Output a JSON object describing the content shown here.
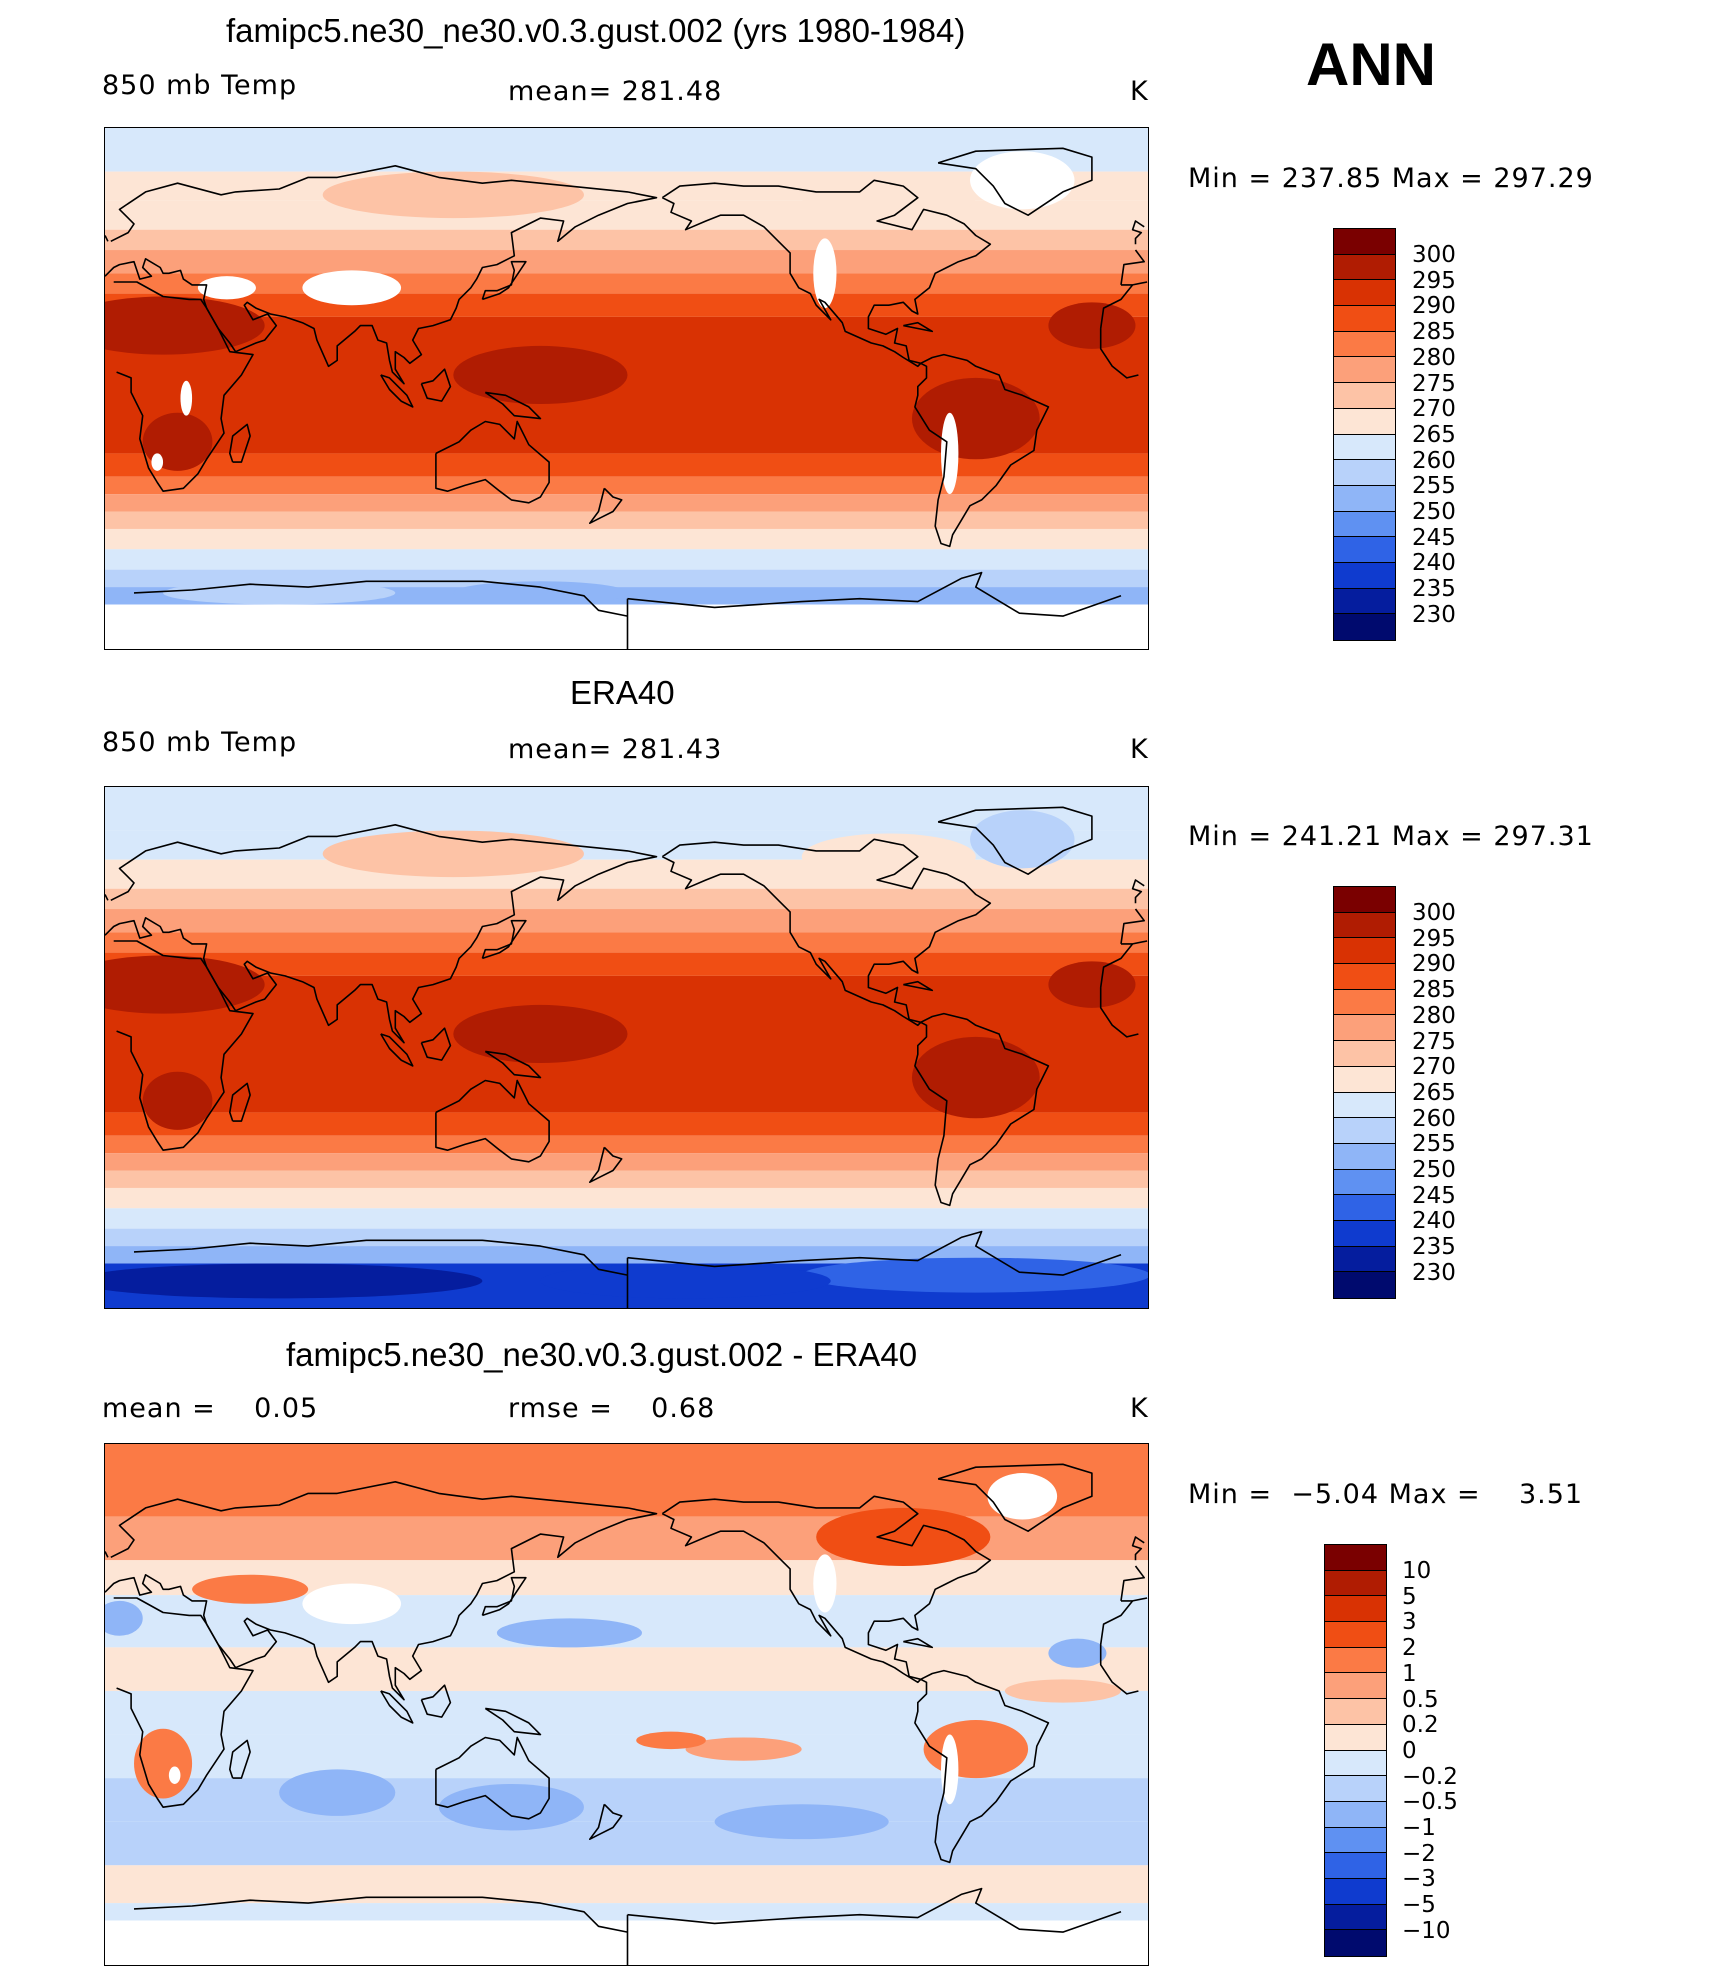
{
  "season": "ANN",
  "panels": [
    {
      "id": "model",
      "title": "famipc5.ne30_ne30.v0.3.gust.002 (yrs 1980-1984)",
      "left_label": "850 mb Temp",
      "center_label": "mean= 281.48",
      "units": "K",
      "min_max": "Min = 237.85 Max = 297.29",
      "colorbar_labels": [
        "300",
        "295",
        "290",
        "285",
        "280",
        "275",
        "270",
        "265",
        "260",
        "255",
        "250",
        "245",
        "240",
        "235",
        "230"
      ],
      "field": "model"
    },
    {
      "id": "obs",
      "title": "ERA40",
      "left_label": "850 mb Temp",
      "center_label": "mean= 281.43",
      "units": "K",
      "min_max": "Min = 241.21 Max = 297.31",
      "colorbar_labels": [
        "300",
        "295",
        "290",
        "285",
        "280",
        "275",
        "270",
        "265",
        "260",
        "255",
        "250",
        "245",
        "240",
        "235",
        "230"
      ],
      "field": "obs"
    },
    {
      "id": "diff",
      "title": "famipc5.ne30_ne30.v0.3.gust.002 - ERA40",
      "left_label": "mean =    0.05",
      "center_label": "rmse =    0.68",
      "units": "K",
      "min_max": "Min =  −5.04 Max =    3.51",
      "colorbar_labels": [
        "10",
        "5",
        "3",
        "2",
        "1",
        "0.5",
        "0.2",
        "0",
        "−0.2",
        "−0.5",
        "−1",
        "−2",
        "−3",
        "−5",
        "−10"
      ],
      "field": "diff"
    }
  ],
  "colors": {
    "scale": [
      "#7a0000",
      "#b01c02",
      "#d93203",
      "#f04e14",
      "#fb7a45",
      "#fca07a",
      "#fdc3a6",
      "#fde5d5",
      "#d7e8fb",
      "#b8d2fa",
      "#8fb5f7",
      "#5f91f2",
      "#2f63e6",
      "#0f3bcf",
      "#051d9e",
      "#000a6e"
    ],
    "missing": "#ffffff",
    "coastline": "#000000"
  }
}
